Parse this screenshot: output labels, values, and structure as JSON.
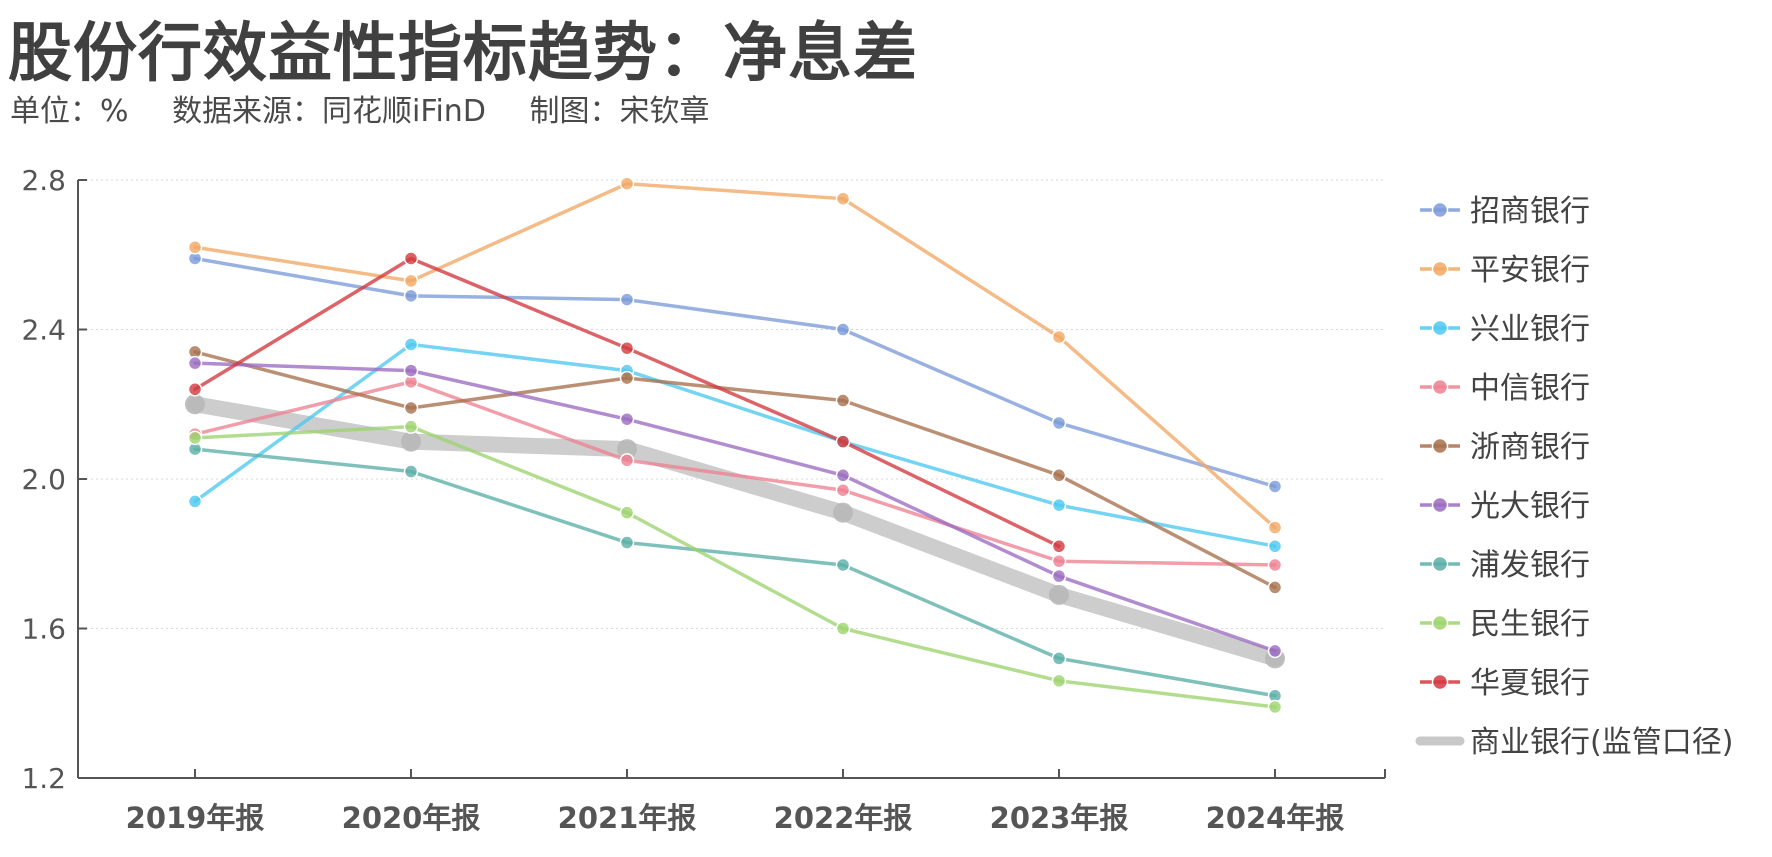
{
  "title": "股份行效益性指标趋势：净息差",
  "subtitle": {
    "unit": "单位：%",
    "source": "数据来源：同花顺iFinD",
    "author": "制图：宋钦章"
  },
  "chart_data": {
    "type": "line",
    "title": "股份行效益性指标趋势：净息差",
    "xlabel": "",
    "ylabel": "",
    "categories": [
      "2019年报",
      "2020年报",
      "2021年报",
      "2022年报",
      "2023年报",
      "2024年报"
    ],
    "ylim": [
      1.2,
      2.8
    ],
    "yticks": [
      1.2,
      1.6,
      2.0,
      2.4,
      2.8
    ],
    "ytick_labels": [
      "1.2",
      "1.6",
      "2.0",
      "2.4",
      "2.8"
    ],
    "grid": "horizontal-dotted",
    "legend_position": "right",
    "series": [
      {
        "name": "招商银行",
        "color": "#7B9BD8",
        "values": [
          2.59,
          2.49,
          2.48,
          2.4,
          2.15,
          1.98
        ]
      },
      {
        "name": "平安银行",
        "color": "#F2A865",
        "values": [
          2.62,
          2.53,
          2.79,
          2.75,
          2.38,
          1.87
        ]
      },
      {
        "name": "兴业银行",
        "color": "#4DC8F0",
        "values": [
          1.94,
          2.36,
          2.29,
          2.1,
          1.93,
          1.82
        ]
      },
      {
        "name": "中信银行",
        "color": "#EE8192",
        "values": [
          2.12,
          2.26,
          2.05,
          1.97,
          1.78,
          1.77
        ]
      },
      {
        "name": "浙商银行",
        "color": "#A8704D",
        "values": [
          2.34,
          2.19,
          2.27,
          2.21,
          2.01,
          1.71
        ]
      },
      {
        "name": "光大银行",
        "color": "#9B6CC0",
        "values": [
          2.31,
          2.29,
          2.16,
          2.01,
          1.74,
          1.54
        ]
      },
      {
        "name": "浦发银行",
        "color": "#5BAFA6",
        "values": [
          2.08,
          2.02,
          1.83,
          1.77,
          1.52,
          1.42
        ]
      },
      {
        "name": "民生银行",
        "color": "#9DD36E",
        "values": [
          2.11,
          2.14,
          1.91,
          1.6,
          1.46,
          1.39
        ]
      },
      {
        "name": "华夏银行",
        "color": "#D2393F",
        "values": [
          2.24,
          2.59,
          2.35,
          2.1,
          1.82,
          null
        ]
      },
      {
        "name": "商业银行(监管口径)",
        "color": "#C8C8C8",
        "values": [
          2.2,
          2.1,
          2.08,
          1.91,
          1.69,
          1.52
        ],
        "style": "thick"
      }
    ]
  }
}
